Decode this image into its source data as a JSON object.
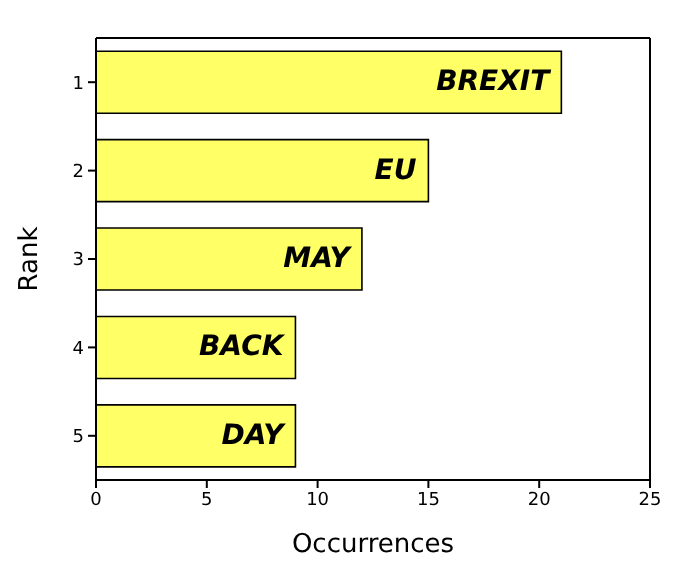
{
  "chart_data": {
    "type": "bar",
    "orientation": "horizontal",
    "xlabel": "Occurrences",
    "ylabel": "Rank",
    "categories": [
      "1",
      "2",
      "3",
      "4",
      "5"
    ],
    "values": [
      21,
      15,
      12,
      9,
      9
    ],
    "color": "#ffff66",
    "xlim": [
      0,
      25
    ],
    "xticks": [
      0,
      5,
      10,
      15,
      20,
      25
    ],
    "grid": false,
    "legend": false,
    "annotations": [
      {
        "text": "BREXIT",
        "x": 21,
        "y": "1"
      },
      {
        "text": "EU",
        "x": 15,
        "y": "2"
      },
      {
        "text": "MAY",
        "x": 12,
        "y": "3"
      },
      {
        "text": "BACK",
        "x": 9,
        "y": "4"
      },
      {
        "text": "DAY",
        "x": 9,
        "y": "5"
      }
    ]
  }
}
